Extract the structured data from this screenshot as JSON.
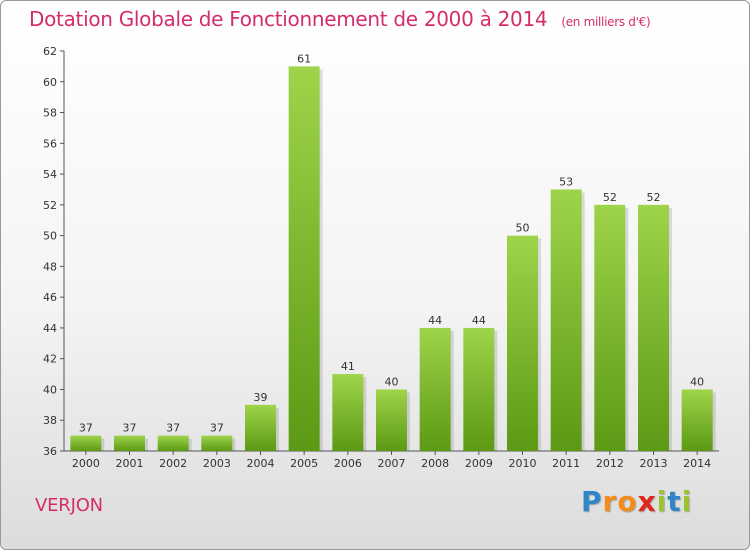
{
  "title": "Dotation Globale de Fonctionnement de 2000 à 2014",
  "unit_note": "(en milliers d'€)",
  "commune": "VERJON",
  "logo": {
    "text": "Proxiti",
    "letters": [
      "P",
      "r",
      "o",
      "x",
      "i",
      "t",
      "i"
    ],
    "colors": [
      "#2e86c8",
      "#f28c1a",
      "#f28c1a",
      "#e1261c",
      "#9bc52e",
      "#2e86c8",
      "#9bc52e"
    ]
  },
  "colors": {
    "title": "#d42d6b",
    "bar_light": "#9ed44a",
    "bar_dark": "#5c9914",
    "axis": "#555555"
  },
  "chart_data": {
    "type": "bar",
    "title": "Dotation Globale de Fonctionnement de 2000 à 2014",
    "xlabel": "",
    "ylabel": "",
    "categories": [
      "2000",
      "2001",
      "2002",
      "2003",
      "2004",
      "2005",
      "2006",
      "2007",
      "2008",
      "2009",
      "2010",
      "2011",
      "2012",
      "2013",
      "2014"
    ],
    "values": [
      37,
      37,
      37,
      37,
      39,
      61,
      41,
      40,
      44,
      44,
      50,
      53,
      52,
      52,
      40
    ],
    "ylim": [
      36,
      62
    ],
    "yticks": [
      36,
      38,
      40,
      42,
      44,
      46,
      48,
      50,
      52,
      54,
      56,
      58,
      60,
      62
    ],
    "grid": false,
    "legend": "none"
  }
}
